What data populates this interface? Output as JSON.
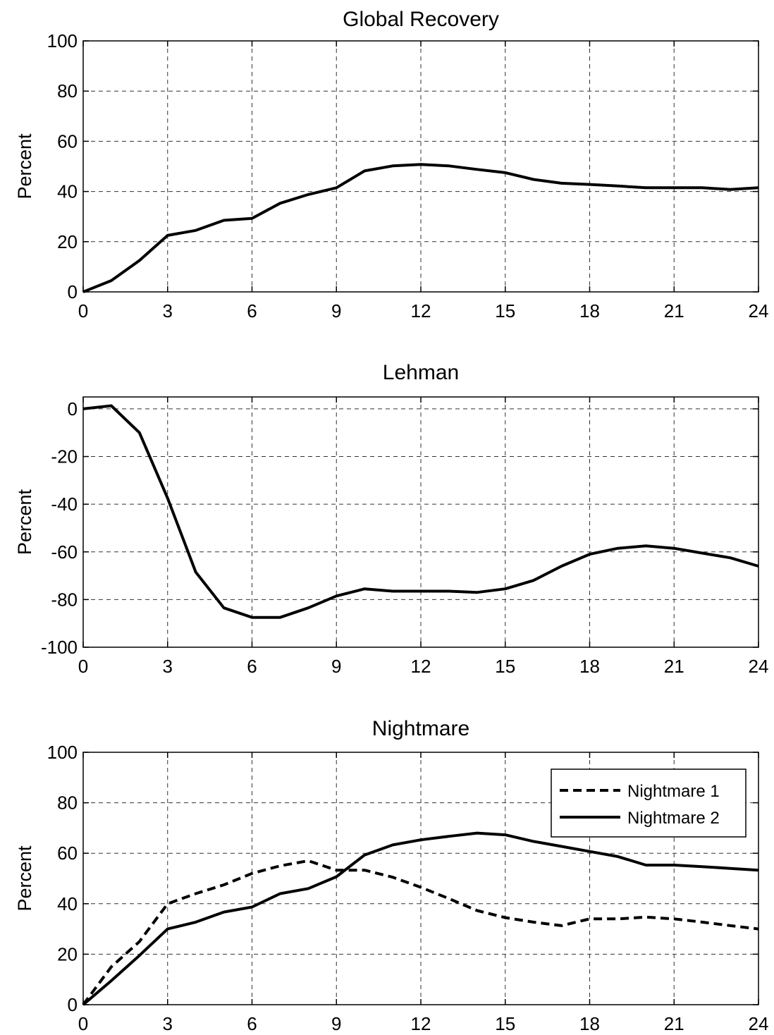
{
  "chart_data": [
    {
      "type": "line",
      "title": "Global Recovery",
      "ylabel": "Percent",
      "xlabel": "",
      "xlim": [
        0,
        24
      ],
      "ylim": [
        0,
        100
      ],
      "xticks": [
        0,
        3,
        6,
        9,
        12,
        15,
        18,
        21,
        24
      ],
      "yticks": [
        0,
        20,
        40,
        60,
        80,
        100
      ],
      "grid": true,
      "series": [
        {
          "style": "solid",
          "x": [
            0,
            1,
            2,
            3,
            4,
            5,
            6,
            7,
            8,
            9,
            10,
            11,
            12,
            13,
            14,
            15,
            16,
            17,
            18,
            19,
            20,
            21,
            22,
            23,
            24
          ],
          "values": [
            0,
            4.5,
            12.5,
            22.5,
            24.5,
            28.5,
            29.3,
            35.3,
            38.8,
            41.5,
            48.2,
            50.2,
            50.8,
            50.2,
            48.8,
            47.5,
            44.8,
            43.3,
            42.8,
            42.2,
            41.5,
            41.5,
            41.5,
            40.8,
            41.5
          ]
        }
      ]
    },
    {
      "type": "line",
      "title": "Lehman",
      "ylabel": "Percent",
      "xlabel": "",
      "xlim": [
        0,
        24
      ],
      "ylim": [
        -100,
        5
      ],
      "xticks": [
        0,
        3,
        6,
        9,
        12,
        15,
        18,
        21,
        24
      ],
      "yticks": [
        -100,
        -80,
        -60,
        -40,
        -20,
        0
      ],
      "grid": true,
      "series": [
        {
          "style": "solid",
          "x": [
            0,
            1,
            2,
            3,
            4,
            5,
            6,
            7,
            8,
            9,
            10,
            11,
            12,
            13,
            14,
            15,
            16,
            17,
            18,
            19,
            20,
            21,
            22,
            23,
            24
          ],
          "values": [
            0,
            1.3,
            -10,
            -37.5,
            -68.5,
            -83.5,
            -87.5,
            -87.5,
            -83.5,
            -78.5,
            -75.5,
            -76.5,
            -76.5,
            -76.5,
            -77,
            -75.5,
            -72,
            -66,
            -61,
            -58.5,
            -57.5,
            -58.5,
            -60.5,
            -62.5,
            -66
          ]
        }
      ]
    },
    {
      "type": "line",
      "title": "Nightmare",
      "ylabel": "Percent",
      "xlabel": "",
      "xlim": [
        0,
        24
      ],
      "ylim": [
        0,
        100
      ],
      "xticks": [
        0,
        3,
        6,
        9,
        12,
        15,
        18,
        21,
        24
      ],
      "yticks": [
        0,
        20,
        40,
        60,
        80,
        100
      ],
      "grid": true,
      "legend": "top-right",
      "series": [
        {
          "name": "Nightmare 1",
          "style": "dashed",
          "x": [
            0,
            1,
            2,
            3,
            4,
            5,
            6,
            7,
            8,
            9,
            10,
            11,
            12,
            13,
            14,
            15,
            16,
            17,
            18,
            19,
            20,
            21,
            22,
            23,
            24
          ],
          "values": [
            0,
            15,
            25,
            40,
            44,
            47.5,
            52,
            55,
            57,
            53.3,
            53.3,
            50.5,
            46.5,
            42,
            37.3,
            34.5,
            32.7,
            31.3,
            34,
            34,
            34.7,
            34,
            32.7,
            31.3,
            30
          ]
        },
        {
          "name": "Nightmare 2",
          "style": "solid",
          "x": [
            0,
            1,
            2,
            3,
            4,
            5,
            6,
            7,
            8,
            9,
            10,
            11,
            12,
            13,
            14,
            15,
            16,
            17,
            18,
            19,
            20,
            21,
            22,
            23,
            24
          ],
          "values": [
            0,
            9.5,
            19.5,
            30,
            32.7,
            36.7,
            38.7,
            44,
            46,
            50.7,
            59.3,
            63.3,
            65.3,
            66.7,
            68,
            67.3,
            64.7,
            62.7,
            60.7,
            58.7,
            55.3,
            55.3,
            54.7,
            54,
            53.3
          ]
        }
      ]
    }
  ]
}
